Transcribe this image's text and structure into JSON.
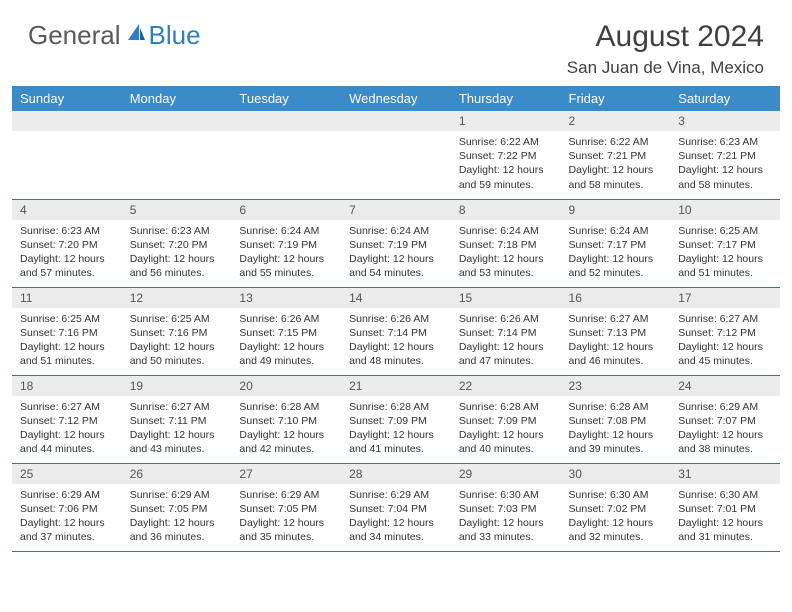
{
  "brand": {
    "part1": "General",
    "part2": "Blue"
  },
  "title": "August 2024",
  "location": "San Juan de Vina, Mexico",
  "colors": {
    "header_bg": "#3b8bc9",
    "header_text": "#ffffff",
    "daynum_bg": "#ececec",
    "row_divider": "#3b6fa5",
    "brand_gray": "#5a5a5a",
    "brand_blue": "#2f7fbf"
  },
  "weekdays": [
    "Sunday",
    "Monday",
    "Tuesday",
    "Wednesday",
    "Thursday",
    "Friday",
    "Saturday"
  ],
  "weeks": [
    [
      null,
      null,
      null,
      null,
      {
        "n": "1",
        "sunrise": "Sunrise: 6:22 AM",
        "sunset": "Sunset: 7:22 PM",
        "day1": "Daylight: 12 hours",
        "day2": "and 59 minutes."
      },
      {
        "n": "2",
        "sunrise": "Sunrise: 6:22 AM",
        "sunset": "Sunset: 7:21 PM",
        "day1": "Daylight: 12 hours",
        "day2": "and 58 minutes."
      },
      {
        "n": "3",
        "sunrise": "Sunrise: 6:23 AM",
        "sunset": "Sunset: 7:21 PM",
        "day1": "Daylight: 12 hours",
        "day2": "and 58 minutes."
      }
    ],
    [
      {
        "n": "4",
        "sunrise": "Sunrise: 6:23 AM",
        "sunset": "Sunset: 7:20 PM",
        "day1": "Daylight: 12 hours",
        "day2": "and 57 minutes."
      },
      {
        "n": "5",
        "sunrise": "Sunrise: 6:23 AM",
        "sunset": "Sunset: 7:20 PM",
        "day1": "Daylight: 12 hours",
        "day2": "and 56 minutes."
      },
      {
        "n": "6",
        "sunrise": "Sunrise: 6:24 AM",
        "sunset": "Sunset: 7:19 PM",
        "day1": "Daylight: 12 hours",
        "day2": "and 55 minutes."
      },
      {
        "n": "7",
        "sunrise": "Sunrise: 6:24 AM",
        "sunset": "Sunset: 7:19 PM",
        "day1": "Daylight: 12 hours",
        "day2": "and 54 minutes."
      },
      {
        "n": "8",
        "sunrise": "Sunrise: 6:24 AM",
        "sunset": "Sunset: 7:18 PM",
        "day1": "Daylight: 12 hours",
        "day2": "and 53 minutes."
      },
      {
        "n": "9",
        "sunrise": "Sunrise: 6:24 AM",
        "sunset": "Sunset: 7:17 PM",
        "day1": "Daylight: 12 hours",
        "day2": "and 52 minutes."
      },
      {
        "n": "10",
        "sunrise": "Sunrise: 6:25 AM",
        "sunset": "Sunset: 7:17 PM",
        "day1": "Daylight: 12 hours",
        "day2": "and 51 minutes."
      }
    ],
    [
      {
        "n": "11",
        "sunrise": "Sunrise: 6:25 AM",
        "sunset": "Sunset: 7:16 PM",
        "day1": "Daylight: 12 hours",
        "day2": "and 51 minutes."
      },
      {
        "n": "12",
        "sunrise": "Sunrise: 6:25 AM",
        "sunset": "Sunset: 7:16 PM",
        "day1": "Daylight: 12 hours",
        "day2": "and 50 minutes."
      },
      {
        "n": "13",
        "sunrise": "Sunrise: 6:26 AM",
        "sunset": "Sunset: 7:15 PM",
        "day1": "Daylight: 12 hours",
        "day2": "and 49 minutes."
      },
      {
        "n": "14",
        "sunrise": "Sunrise: 6:26 AM",
        "sunset": "Sunset: 7:14 PM",
        "day1": "Daylight: 12 hours",
        "day2": "and 48 minutes."
      },
      {
        "n": "15",
        "sunrise": "Sunrise: 6:26 AM",
        "sunset": "Sunset: 7:14 PM",
        "day1": "Daylight: 12 hours",
        "day2": "and 47 minutes."
      },
      {
        "n": "16",
        "sunrise": "Sunrise: 6:27 AM",
        "sunset": "Sunset: 7:13 PM",
        "day1": "Daylight: 12 hours",
        "day2": "and 46 minutes."
      },
      {
        "n": "17",
        "sunrise": "Sunrise: 6:27 AM",
        "sunset": "Sunset: 7:12 PM",
        "day1": "Daylight: 12 hours",
        "day2": "and 45 minutes."
      }
    ],
    [
      {
        "n": "18",
        "sunrise": "Sunrise: 6:27 AM",
        "sunset": "Sunset: 7:12 PM",
        "day1": "Daylight: 12 hours",
        "day2": "and 44 minutes."
      },
      {
        "n": "19",
        "sunrise": "Sunrise: 6:27 AM",
        "sunset": "Sunset: 7:11 PM",
        "day1": "Daylight: 12 hours",
        "day2": "and 43 minutes."
      },
      {
        "n": "20",
        "sunrise": "Sunrise: 6:28 AM",
        "sunset": "Sunset: 7:10 PM",
        "day1": "Daylight: 12 hours",
        "day2": "and 42 minutes."
      },
      {
        "n": "21",
        "sunrise": "Sunrise: 6:28 AM",
        "sunset": "Sunset: 7:09 PM",
        "day1": "Daylight: 12 hours",
        "day2": "and 41 minutes."
      },
      {
        "n": "22",
        "sunrise": "Sunrise: 6:28 AM",
        "sunset": "Sunset: 7:09 PM",
        "day1": "Daylight: 12 hours",
        "day2": "and 40 minutes."
      },
      {
        "n": "23",
        "sunrise": "Sunrise: 6:28 AM",
        "sunset": "Sunset: 7:08 PM",
        "day1": "Daylight: 12 hours",
        "day2": "and 39 minutes."
      },
      {
        "n": "24",
        "sunrise": "Sunrise: 6:29 AM",
        "sunset": "Sunset: 7:07 PM",
        "day1": "Daylight: 12 hours",
        "day2": "and 38 minutes."
      }
    ],
    [
      {
        "n": "25",
        "sunrise": "Sunrise: 6:29 AM",
        "sunset": "Sunset: 7:06 PM",
        "day1": "Daylight: 12 hours",
        "day2": "and 37 minutes."
      },
      {
        "n": "26",
        "sunrise": "Sunrise: 6:29 AM",
        "sunset": "Sunset: 7:05 PM",
        "day1": "Daylight: 12 hours",
        "day2": "and 36 minutes."
      },
      {
        "n": "27",
        "sunrise": "Sunrise: 6:29 AM",
        "sunset": "Sunset: 7:05 PM",
        "day1": "Daylight: 12 hours",
        "day2": "and 35 minutes."
      },
      {
        "n": "28",
        "sunrise": "Sunrise: 6:29 AM",
        "sunset": "Sunset: 7:04 PM",
        "day1": "Daylight: 12 hours",
        "day2": "and 34 minutes."
      },
      {
        "n": "29",
        "sunrise": "Sunrise: 6:30 AM",
        "sunset": "Sunset: 7:03 PM",
        "day1": "Daylight: 12 hours",
        "day2": "and 33 minutes."
      },
      {
        "n": "30",
        "sunrise": "Sunrise: 6:30 AM",
        "sunset": "Sunset: 7:02 PM",
        "day1": "Daylight: 12 hours",
        "day2": "and 32 minutes."
      },
      {
        "n": "31",
        "sunrise": "Sunrise: 6:30 AM",
        "sunset": "Sunset: 7:01 PM",
        "day1": "Daylight: 12 hours",
        "day2": "and 31 minutes."
      }
    ]
  ]
}
